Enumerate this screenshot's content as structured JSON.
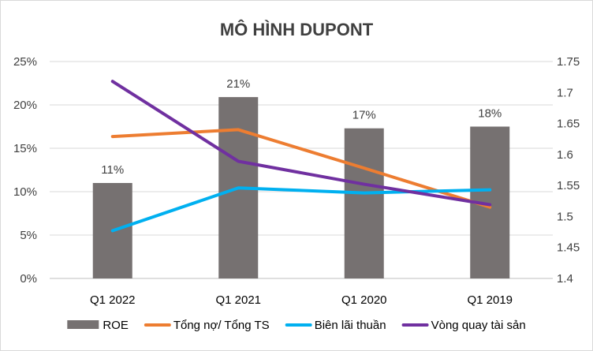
{
  "chart_data": {
    "type": "bar",
    "title": "MÔ HÌNH DUPONT",
    "categories": [
      "Q1 2022",
      "Q1 2021",
      "Q1 2020",
      "Q1 2019"
    ],
    "y_left": {
      "ticks": [
        "0%",
        "5%",
        "10%",
        "15%",
        "20%",
        "25%"
      ],
      "ylim": [
        0,
        0.25
      ]
    },
    "y_right": {
      "ticks": [
        "1.4",
        "1.45",
        "1.5",
        "1.55",
        "1.6",
        "1.65",
        "1.7",
        "1.75"
      ],
      "ylim": [
        1.4,
        1.75
      ]
    },
    "grid": true,
    "legend_position": "bottom",
    "series": [
      {
        "name": "ROE",
        "kind": "bar",
        "axis": "left",
        "color": "#767171",
        "values": [
          0.11,
          0.209,
          0.173,
          0.175
        ],
        "labels": [
          "11%",
          "21%",
          "17%",
          "18%"
        ]
      },
      {
        "name": "Tổng nợ/ Tổng TS",
        "kind": "line",
        "axis": "right",
        "color": "#ED7D31",
        "values": [
          1.629,
          1.64,
          1.578,
          1.515
        ]
      },
      {
        "name": "Biên lãi thuần",
        "kind": "line",
        "axis": "right",
        "color": "#00B0F0",
        "values": [
          1.477,
          1.546,
          1.538,
          1.543
        ]
      },
      {
        "name": "Vòng quay tài sản",
        "kind": "line",
        "axis": "right",
        "color": "#7030A0",
        "values": [
          1.718,
          1.589,
          1.552,
          1.519
        ]
      }
    ]
  }
}
